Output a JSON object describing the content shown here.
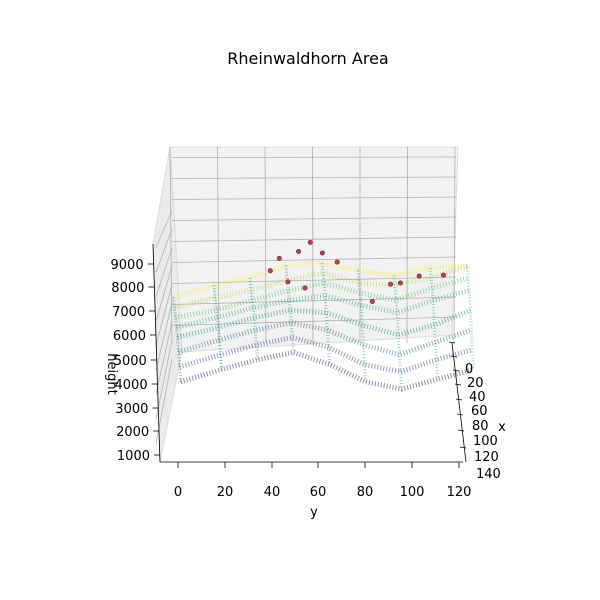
{
  "chart_data": {
    "type": "scatter3d",
    "title": "Rheinwaldhorn Area",
    "xlabel": "x",
    "ylabel": "y",
    "zlabel": "height",
    "x_ticks": [
      "0",
      "20",
      "40",
      "60",
      "80",
      "100",
      "120",
      "140"
    ],
    "y_ticks": [
      "0",
      "20",
      "40",
      "60",
      "80",
      "100",
      "120"
    ],
    "z_ticks": [
      "1000",
      "2000",
      "3000",
      "4000",
      "5000",
      "6000",
      "7000",
      "8000",
      "9000"
    ],
    "xlim": [
      0,
      140
    ],
    "ylim": [
      -10,
      125
    ],
    "zlim": [
      500,
      10000
    ],
    "colormap": "viridis",
    "surface_rows": [
      {
        "x": 0,
        "y": [
          -2,
          15,
          30,
          45,
          60,
          75,
          90,
          105,
          120
        ],
        "z": [
          5600,
          6100,
          6400,
          6900,
          7000,
          6700,
          6500,
          6800,
          6900
        ]
      },
      {
        "x": 20,
        "y": [
          -2,
          15,
          30,
          45,
          60,
          75,
          90,
          105,
          120
        ],
        "z": [
          5400,
          5800,
          6100,
          6500,
          6800,
          6400,
          6300,
          6600,
          7100
        ]
      },
      {
        "x": 40,
        "y": [
          -2,
          15,
          30,
          45,
          60,
          75,
          90,
          105,
          120
        ],
        "z": [
          5200,
          5500,
          5900,
          6300,
          6600,
          6200,
          5900,
          6400,
          6800
        ]
      },
      {
        "x": 60,
        "y": [
          -2,
          15,
          30,
          45,
          60,
          75,
          90,
          105,
          120
        ],
        "z": [
          5000,
          5400,
          5800,
          6100,
          6300,
          5900,
          5600,
          6100,
          6500
        ]
      },
      {
        "x": 80,
        "y": [
          -2,
          15,
          30,
          45,
          60,
          75,
          90,
          105,
          120
        ],
        "z": [
          4800,
          5200,
          5600,
          5900,
          5800,
          5300,
          4900,
          5300,
          5900
        ]
      },
      {
        "x": 100,
        "y": [
          -2,
          15,
          30,
          45,
          60,
          75,
          90,
          105,
          120
        ],
        "z": [
          4400,
          4900,
          5300,
          5600,
          5300,
          4700,
          4300,
          4800,
          5300
        ]
      },
      {
        "x": 120,
        "y": [
          -2,
          15,
          30,
          45,
          60,
          75,
          90,
          105,
          120
        ],
        "z": [
          4000,
          4500,
          4900,
          5200,
          4800,
          4100,
          3800,
          4300,
          4700
        ]
      },
      {
        "x": 140,
        "y": [
          -2,
          15,
          30,
          45,
          60,
          75,
          90,
          105,
          120
        ],
        "z": [
          3600,
          4100,
          4500,
          4800,
          4300,
          3600,
          3300,
          3700,
          4100
        ]
      }
    ],
    "peaks": [
      {
        "x": 10,
        "y": 42,
        "z": 7300
      },
      {
        "x": 12,
        "y": 50,
        "z": 7600
      },
      {
        "x": 5,
        "y": 55,
        "z": 7900
      },
      {
        "x": 8,
        "y": 60,
        "z": 7500
      },
      {
        "x": 15,
        "y": 66,
        "z": 7200
      },
      {
        "x": 20,
        "y": 38,
        "z": 6900
      },
      {
        "x": 22,
        "y": 100,
        "z": 6700
      },
      {
        "x": 30,
        "y": 92,
        "z": 6500
      },
      {
        "x": 25,
        "y": 88,
        "z": 6400
      },
      {
        "x": 35,
        "y": 45,
        "z": 6600
      },
      {
        "x": 40,
        "y": 52,
        "z": 6400
      },
      {
        "x": 28,
        "y": 110,
        "z": 6800
      },
      {
        "x": 45,
        "y": 80,
        "z": 5900
      }
    ],
    "grid": true
  }
}
